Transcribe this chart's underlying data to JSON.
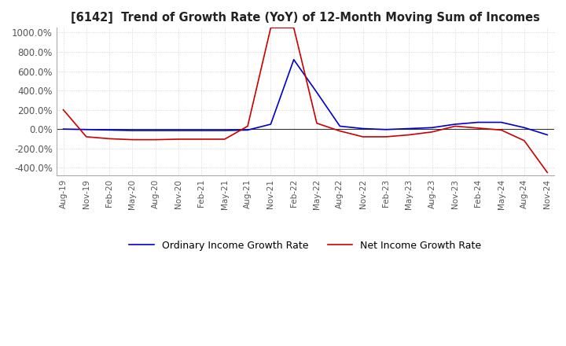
{
  "title": "[6142]  Trend of Growth Rate (YoY) of 12-Month Moving Sum of Incomes",
  "ylim": [
    -480,
    1050
  ],
  "yticks": [
    -400,
    -200,
    0,
    200,
    400,
    600,
    800,
    1000
  ],
  "ytick_labels": [
    "-400.0%",
    "-200.0%",
    "0.0%",
    "200.0%",
    "400.0%",
    "600.0%",
    "800.0%",
    "1000.0%"
  ],
  "background_color": "#ffffff",
  "plot_bg_color": "#ffffff",
  "grid_color": "#cccccc",
  "line1_color": "#0000cc",
  "line2_color": "#cc0000",
  "line1_label": "Ordinary Income Growth Rate",
  "line2_label": "Net Income Growth Rate",
  "x_labels": [
    "Aug-19",
    "Nov-19",
    "Feb-20",
    "May-20",
    "Aug-20",
    "Nov-20",
    "Feb-21",
    "May-21",
    "Aug-21",
    "Nov-21",
    "Feb-22",
    "May-22",
    "Aug-22",
    "Nov-22",
    "Feb-23",
    "May-23",
    "Aug-23",
    "Nov-23",
    "Feb-24",
    "May-24",
    "Aug-24",
    "Nov-24"
  ],
  "ordinary_income": [
    0,
    -5,
    -10,
    -15,
    -15,
    -15,
    -15,
    -15,
    -10,
    50,
    720,
    380,
    30,
    5,
    -5,
    5,
    15,
    50,
    70,
    70,
    15,
    -60
  ],
  "net_income": [
    200,
    -80,
    -100,
    -110,
    -110,
    -105,
    -105,
    -105,
    30,
    1050,
    1050,
    60,
    -20,
    -80,
    -80,
    -60,
    -30,
    30,
    10,
    -10,
    -120,
    -450
  ]
}
